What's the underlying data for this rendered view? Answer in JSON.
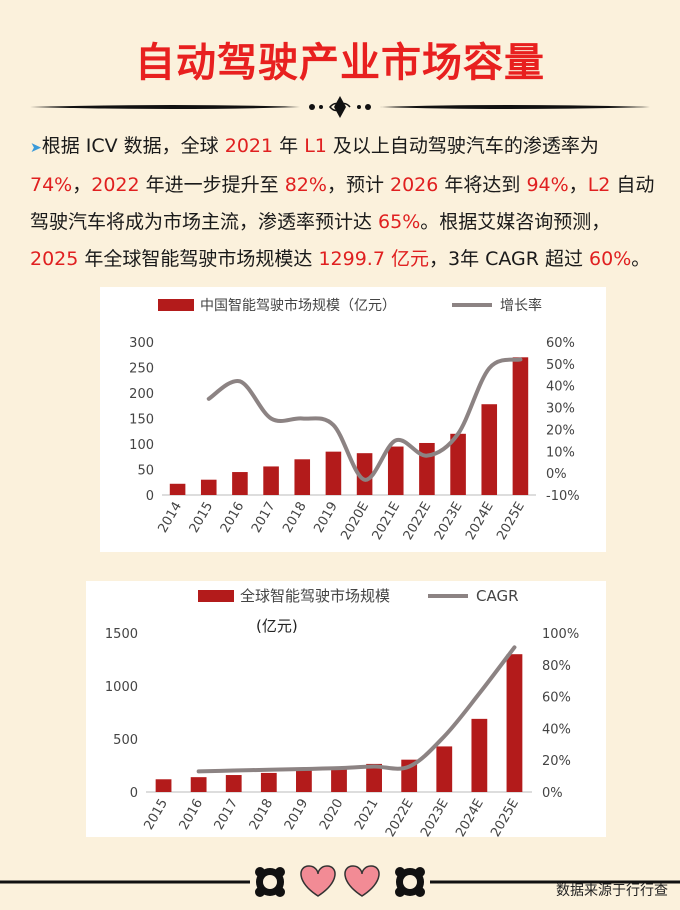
{
  "header": {
    "title": "自动驾驶产业市场容量"
  },
  "paragraph": {
    "bullet": "➤",
    "segments": [
      {
        "t": "根据 ICV 数据，全球 "
      },
      {
        "t": "2021",
        "h": 1
      },
      {
        "t": " 年 "
      },
      {
        "t": "L1",
        "h": 1
      },
      {
        "t": " 及以上自动驾驶汽车的渗透率为"
      },
      {
        "t": "74%",
        "h": 1
      },
      {
        "t": "，"
      },
      {
        "t": "2022",
        "h": 1
      },
      {
        "t": " 年进一步提升至 "
      },
      {
        "t": "82%",
        "h": 1
      },
      {
        "t": "，预计 "
      },
      {
        "t": "2026",
        "h": 1
      },
      {
        "t": " 年将达到 "
      },
      {
        "t": "94%",
        "h": 1
      },
      {
        "t": "，"
      },
      {
        "t": "L2",
        "h": 1
      },
      {
        "t": " 自动驾驶汽车将成为市场主流，渗透率预计达 "
      },
      {
        "t": "65%",
        "h": 1
      },
      {
        "t": "。根据艾媒咨询预测，"
      },
      {
        "t": "2025",
        "h": 1
      },
      {
        "t": " 年全球智能驾驶市场规模达 "
      },
      {
        "t": "1299.7 亿元",
        "h": 1
      },
      {
        "t": "，3年 CAGR 超过 "
      },
      {
        "t": "60%",
        "h": 1
      },
      {
        "t": "。"
      }
    ]
  },
  "chart_data": [
    {
      "type": "bar",
      "categories": [
        "2014",
        "2015",
        "2016",
        "2017",
        "2018",
        "2019",
        "2020E",
        "2021E",
        "2022E",
        "2023E",
        "2024E",
        "2025E"
      ],
      "series": [
        {
          "name": "中国智能驾驶市场规模（亿元）",
          "type": "bar",
          "axis": "left",
          "values": [
            22,
            30,
            45,
            56,
            70,
            85,
            82,
            95,
            102,
            120,
            178,
            270
          ]
        },
        {
          "name": "增长率",
          "type": "line",
          "axis": "right",
          "values": [
            null,
            34,
            42,
            25,
            25,
            22,
            -3,
            15,
            8,
            18,
            48,
            52
          ]
        }
      ],
      "ylim": [
        0,
        300
      ],
      "yticks": [
        0,
        50,
        100,
        150,
        200,
        250,
        300
      ],
      "y2lim": [
        -10,
        60
      ],
      "y2ticks": [
        "-10%",
        "0%",
        "10%",
        "20%",
        "30%",
        "40%",
        "50%",
        "60%"
      ],
      "grid": false,
      "legend": "top"
    },
    {
      "type": "bar",
      "categories": [
        "2015",
        "2016",
        "2017",
        "2018",
        "2019",
        "2020",
        "2021",
        "2022E",
        "2023E",
        "2024E",
        "2025E"
      ],
      "series": [
        {
          "name": "全球智能驾驶市场规模",
          "type": "bar",
          "axis": "left",
          "values": [
            120,
            140,
            160,
            180,
            205,
            225,
            265,
            305,
            430,
            690,
            1300
          ]
        },
        {
          "name": "CAGR",
          "type": "line",
          "axis": "right",
          "values": [
            null,
            13,
            13.5,
            14,
            14.5,
            15,
            16,
            16,
            35,
            62,
            91
          ]
        }
      ],
      "unit_label": "(亿元)",
      "ylim": [
        0,
        1500
      ],
      "yticks": [
        0,
        500,
        1000,
        1500
      ],
      "y2lim": [
        0,
        100
      ],
      "y2ticks": [
        "0%",
        "20%",
        "40%",
        "60%",
        "80%",
        "100%"
      ],
      "grid": false,
      "legend": "top"
    }
  ],
  "colors": {
    "title": "#e8201f",
    "bar": "#b31b1b",
    "line": "#8c8383",
    "heart": "#f28b95"
  },
  "footer": {
    "source": "数据来源于行行查"
  }
}
